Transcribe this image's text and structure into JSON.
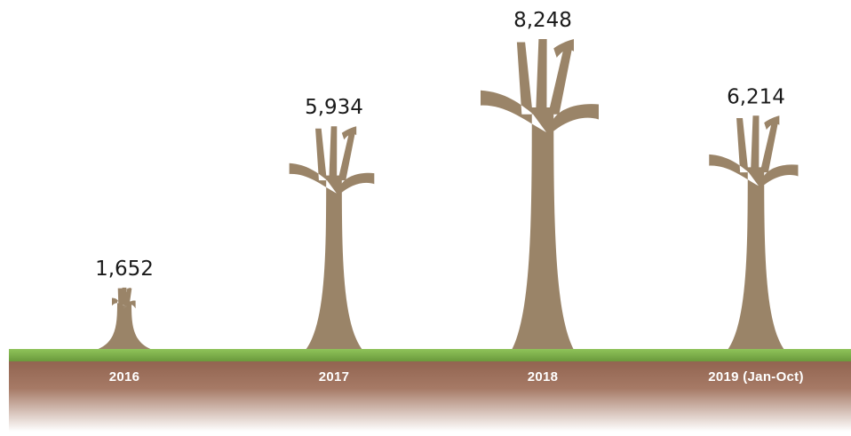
{
  "chart_data": {
    "type": "bar",
    "title": "",
    "xlabel": "",
    "ylabel": "",
    "categories": [
      "2016",
      "2017",
      "2018",
      "2019 (Jan-Oct)"
    ],
    "values": [
      1652,
      5934,
      8248,
      6214
    ],
    "value_labels": [
      "1,652",
      "5,934",
      "8,248",
      "6,214"
    ],
    "ylim": [
      0,
      8248
    ],
    "grid": false,
    "legend": "none",
    "mark_style": "tree-trunk pictogram",
    "colors": {
      "tree": "#9a8468",
      "grass_top": "#8fc35a",
      "grass_bottom": "#6a9a3c",
      "soil_top": "#8c5e4a",
      "soil_mid": "#a67a66",
      "soil_fade": "#ffffff"
    }
  }
}
